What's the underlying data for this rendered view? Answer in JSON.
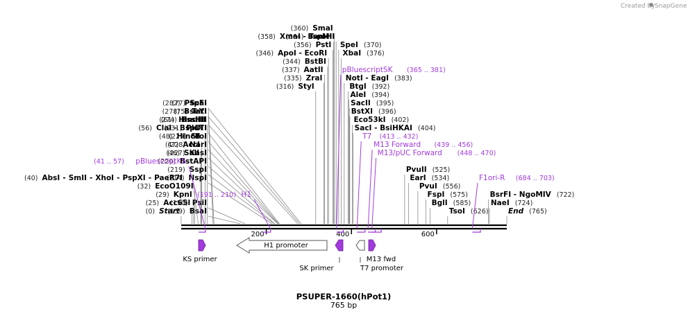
{
  "credit": "Created by",
  "credit_brand": "SnapGene",
  "plasmid": {
    "name": "PSUPER-1660(hPot1)",
    "length_label": "765 bp",
    "length": 765
  },
  "colors": {
    "primer": "#a23bdc",
    "feature_gray": "#ffffff",
    "line": "#000000"
  },
  "sites": [
    {
      "name": "Start",
      "pos": "(0)",
      "italic": true,
      "bp": 0,
      "row": 24
    },
    {
      "name": "Acc65I",
      "pos": "(25)",
      "bp": 25,
      "row": 23
    },
    {
      "name": "KpnI",
      "pos": "(29)",
      "bp": 29,
      "row": 22
    },
    {
      "name": "EcoO109I",
      "pos": "(32)",
      "bp": 32,
      "row": 21
    },
    {
      "name": "SalI",
      "pos": "(46)",
      "bp": 46,
      "row": 17
    },
    {
      "name": "AccI",
      "pos": "(47)",
      "bp": 47,
      "row": 16
    },
    {
      "name": "HincII",
      "pos": "(48)",
      "bp": 48,
      "row": 15
    },
    {
      "name": "ClaI - BspDI",
      "pos": "(56)",
      "bp": 56,
      "row": 14
    },
    {
      "name": "HindIII",
      "pos": "(61)",
      "bp": 61,
      "row": 13
    },
    {
      "name": "TatI",
      "pos": "(75)",
      "bp": 75,
      "row": 12
    },
    {
      "name": "ScaI",
      "pos": "(77)",
      "bp": 77,
      "row": 11
    },
    {
      "name": "BsaI",
      "pos": "(139)",
      "bp": 139,
      "row": 24
    },
    {
      "name": "PsiI",
      "pos": "(150)",
      "bp": 150,
      "row": 23
    },
    {
      "name": "NspI",
      "pos": "(214)",
      "bp": 214,
      "row": 20
    },
    {
      "name": "SspI",
      "pos": "(219)",
      "bp": 219,
      "row": 19
    },
    {
      "name": "BstAPI",
      "pos": "(220)",
      "bp": 220,
      "row": 18
    },
    {
      "name": "KasI",
      "pos": "(227)",
      "bp": 227,
      "row": 17
    },
    {
      "name": "NarI",
      "pos": "(228)",
      "bp": 228,
      "row": 16
    },
    {
      "name": "SfoI",
      "pos": "(229)",
      "bp": 229,
      "row": 15
    },
    {
      "name": "PluTI",
      "pos": "(231)",
      "bp": 231,
      "row": 14
    },
    {
      "name": "BssHII",
      "pos": "(274)",
      "bp": 274,
      "row": 13
    },
    {
      "name": "BseYI",
      "pos": "(278)",
      "bp": 278,
      "row": 12
    },
    {
      "name": "PspFI",
      "pos": "(282)",
      "bp": 282,
      "row": 11
    },
    {
      "name": "StyI",
      "pos": "(316)",
      "bp": 316,
      "row": 9
    },
    {
      "name": "ZraI",
      "pos": "(335)",
      "bp": 335,
      "row": 8
    },
    {
      "name": "AatII",
      "pos": "(337)",
      "bp": 337,
      "row": 7
    },
    {
      "name": "BstBI",
      "pos": "(344)",
      "bp": 344,
      "row": 6
    },
    {
      "name": "ApoI - EcoRI",
      "pos": "(346)",
      "bp": 346,
      "row": 5
    },
    {
      "name": "PstI",
      "pos": "(356)",
      "bp": 356,
      "row": 4
    },
    {
      "name": "XmaI - TspMI",
      "pos": "(358)",
      "bp": 358,
      "row": 3
    },
    {
      "name": "SmaI",
      "pos": "(360)",
      "bp": 360,
      "row": 2
    },
    {
      "name": "BamHI",
      "pos": "(364)",
      "bp": 364,
      "row": 3
    },
    {
      "name": "SpeI",
      "pos": "(370)",
      "bp": 370,
      "row": 4
    },
    {
      "name": "XbaI",
      "pos": "(376)",
      "bp": 376,
      "row": 5
    },
    {
      "name": "NotI - EagI",
      "pos": "(383)",
      "bp": 383,
      "row": 8
    },
    {
      "name": "BtgI",
      "pos": "(392)",
      "bp": 392,
      "row": 9
    },
    {
      "name": "AleI",
      "pos": "(394)",
      "bp": 394,
      "row": 10
    },
    {
      "name": "SacII",
      "pos": "(395)",
      "bp": 395,
      "row": 11
    },
    {
      "name": "BstXI",
      "pos": "(396)",
      "bp": 396,
      "row": 12
    },
    {
      "name": "Eco53kI",
      "pos": "(402)",
      "bp": 402,
      "row": 13
    },
    {
      "name": "SacI - BsiHKAI",
      "pos": "(404)",
      "bp": 404,
      "row": 14
    },
    {
      "name": "PvuII",
      "pos": "(525)",
      "bp": 525,
      "row": 19
    },
    {
      "name": "EarI",
      "pos": "(534)",
      "bp": 534,
      "row": 20
    },
    {
      "name": "PvuI",
      "pos": "(556)",
      "bp": 556,
      "row": 21
    },
    {
      "name": "FspI",
      "pos": "(575)",
      "bp": 575,
      "row": 22
    },
    {
      "name": "BglI",
      "pos": "(585)",
      "bp": 585,
      "row": 23
    },
    {
      "name": "TsoI",
      "pos": "(626)",
      "bp": 626,
      "row": 24
    },
    {
      "name": "BsrFI - NgoMIV",
      "pos": "(722)",
      "bp": 722,
      "row": 22
    },
    {
      "name": "NaeI",
      "pos": "(724)",
      "bp": 724,
      "row": 23
    },
    {
      "name": "End",
      "pos": "(765)",
      "italic": true,
      "bp": 765,
      "row": 24
    }
  ],
  "multi_left": {
    "pos": "(40)",
    "names": [
      "AbsI",
      "SmII",
      "XhoI",
      "PspXI",
      "PaeR7I"
    ]
  },
  "primer_sites": [
    {
      "name": "pBluescriptKS",
      "pos": "(41 .. 57)",
      "start": 41,
      "end": 57,
      "row": 18,
      "side": "left"
    },
    {
      "name": "H1",
      "pos": "(191 .. 210)",
      "start": 191,
      "end": 210,
      "row": 22,
      "side": "left"
    },
    {
      "name": "pBluescriptSK",
      "pos": "(365 .. 381)",
      "start": 365,
      "end": 381,
      "row": 7,
      "side": "right"
    },
    {
      "name": "T7",
      "pos": "(413 .. 432)",
      "start": 413,
      "end": 432,
      "row": 15,
      "side": "right"
    },
    {
      "name": "M13 Forward",
      "pos": "(439 .. 456)",
      "start": 439,
      "end": 456,
      "row": 16,
      "side": "right"
    },
    {
      "name": "M13/pUC Forward",
      "pos": "(448 .. 470)",
      "start": 448,
      "end": 470,
      "row": 17,
      "side": "right"
    },
    {
      "name": "F1ori-R",
      "pos": "(684 .. 703)",
      "start": 684,
      "end": 703,
      "row": 20,
      "side": "right"
    }
  ],
  "ruler": [
    {
      "label": "200",
      "bp": 200
    },
    {
      "label": "400",
      "bp": 400
    },
    {
      "label": "600",
      "bp": 600
    }
  ],
  "features": [
    {
      "name": "KS primer",
      "start": 41,
      "end": 57,
      "kind": "primer"
    },
    {
      "name": "H1 promoter",
      "start": 87,
      "end": 300,
      "kind": "promoter"
    },
    {
      "name": "SK primer",
      "start": 365,
      "end": 381,
      "kind": "primer"
    },
    {
      "name": "T7 promoter",
      "start": 406,
      "end": 424,
      "kind": "promoter"
    },
    {
      "name": "M13 fwd",
      "start": 425,
      "end": 441,
      "kind": "primer"
    }
  ]
}
